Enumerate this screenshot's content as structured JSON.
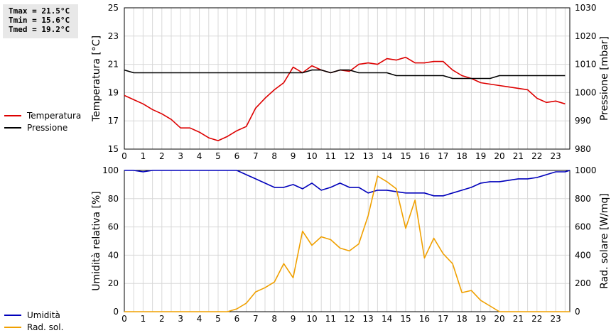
{
  "stats": {
    "tmax": "Tmax = 21.5°C",
    "tmin": "Tmin = 15.6°C",
    "tmed": "Tmed = 19.2°C"
  },
  "legend_top": [
    {
      "label": "Temperatura",
      "color": "#dd0000"
    },
    {
      "label": "Pressione",
      "color": "#000000"
    }
  ],
  "legend_bottom": [
    {
      "label": "Umidità",
      "color": "#0000bb"
    },
    {
      "label": "Rad. sol.",
      "color": "#f0a000"
    }
  ],
  "chart_data": [
    {
      "type": "line",
      "x_ticks": [
        "0",
        "1",
        "2",
        "3",
        "4",
        "5",
        "6",
        "7",
        "8",
        "9",
        "10",
        "11",
        "12",
        "13",
        "14",
        "15",
        "16",
        "17",
        "18",
        "19",
        "20",
        "21",
        "22",
        "23"
      ],
      "xlim": [
        0,
        23.75
      ],
      "ylabel": "Temperatura [°C]",
      "ylim": [
        15,
        25
      ],
      "y_ticks": [
        "15",
        "17",
        "19",
        "21",
        "23",
        "25"
      ],
      "y2label": "Pressione [mbar]",
      "y2lim": [
        980,
        1030
      ],
      "y2_ticks": [
        "980",
        "990",
        "1000",
        "1010",
        "1020",
        "1030"
      ],
      "grid": true,
      "x": [
        0,
        0.5,
        1,
        1.5,
        2,
        2.5,
        3,
        3.5,
        4,
        4.5,
        5,
        5.5,
        6,
        6.5,
        7,
        7.5,
        8,
        8.5,
        9,
        9.5,
        10,
        10.5,
        11,
        11.5,
        12,
        12.5,
        13,
        13.5,
        14,
        14.5,
        15,
        15.5,
        16,
        16.5,
        17,
        17.5,
        18,
        18.5,
        19,
        19.5,
        20,
        20.5,
        21,
        21.5,
        22,
        22.5,
        23,
        23.5
      ],
      "series": [
        {
          "name": "Temperatura",
          "axis": "left",
          "color": "#dd0000",
          "values": [
            18.8,
            18.5,
            18.2,
            17.8,
            17.5,
            17.1,
            16.5,
            16.5,
            16.2,
            15.8,
            15.6,
            15.9,
            16.3,
            16.6,
            17.9,
            18.6,
            19.2,
            19.7,
            20.8,
            20.4,
            20.9,
            20.6,
            20.4,
            20.6,
            20.5,
            21.0,
            21.1,
            21.0,
            21.4,
            21.3,
            21.5,
            21.1,
            21.1,
            21.2,
            21.2,
            20.6,
            20.2,
            20.0,
            19.7,
            19.6,
            19.5,
            19.4,
            19.3,
            19.2,
            18.6,
            18.3,
            18.4,
            18.2
          ]
        },
        {
          "name": "Pressione",
          "axis": "right",
          "color": "#000000",
          "values": [
            1008,
            1007,
            1007,
            1007,
            1007,
            1007,
            1007,
            1007,
            1007,
            1007,
            1007,
            1007,
            1007,
            1007,
            1007,
            1007,
            1007,
            1007,
            1007,
            1007,
            1008,
            1008,
            1007,
            1008,
            1008,
            1007,
            1007,
            1007,
            1007,
            1006,
            1006,
            1006,
            1006,
            1006,
            1006,
            1005,
            1005,
            1005,
            1005,
            1005,
            1006,
            1006,
            1006,
            1006,
            1006,
            1006,
            1006,
            1006
          ]
        }
      ]
    },
    {
      "type": "line",
      "x_ticks": [
        "0",
        "1",
        "2",
        "3",
        "4",
        "5",
        "6",
        "7",
        "8",
        "9",
        "10",
        "11",
        "12",
        "13",
        "14",
        "15",
        "16",
        "17",
        "18",
        "19",
        "20",
        "21",
        "22",
        "23"
      ],
      "xlim": [
        0,
        23.75
      ],
      "ylabel": "Umidità relativa [%]",
      "ylim": [
        0,
        100
      ],
      "y_ticks": [
        "0",
        "20",
        "40",
        "60",
        "80",
        "100"
      ],
      "y2label": "Rad. solare [W/mq]",
      "y2lim": [
        0,
        1000
      ],
      "y2_ticks": [
        "0",
        "200",
        "400",
        "600",
        "800",
        "1000"
      ],
      "grid": true,
      "x": [
        0,
        0.5,
        1,
        1.5,
        2,
        2.5,
        3,
        3.5,
        4,
        4.5,
        5,
        5.5,
        6,
        6.5,
        7,
        7.5,
        8,
        8.5,
        9,
        9.5,
        10,
        10.5,
        11,
        11.5,
        12,
        12.5,
        13,
        13.5,
        14,
        14.5,
        15,
        15.5,
        16,
        16.5,
        17,
        17.5,
        18,
        18.5,
        19,
        19.5,
        20,
        20.5,
        21,
        21.5,
        22,
        22.5,
        23,
        23.5,
        23.75
      ],
      "series": [
        {
          "name": "Umidità",
          "axis": "left",
          "color": "#0000bb",
          "values": [
            100,
            100,
            99,
            100,
            100,
            100,
            100,
            100,
            100,
            100,
            100,
            100,
            100,
            97,
            94,
            91,
            88,
            88,
            90,
            87,
            91,
            86,
            88,
            91,
            88,
            88,
            84,
            86,
            86,
            85,
            84,
            84,
            84,
            82,
            82,
            84,
            86,
            88,
            91,
            92,
            92,
            93,
            94,
            94,
            95,
            97,
            99,
            99,
            100
          ]
        },
        {
          "name": "Rad. sol.",
          "axis": "right",
          "color": "#f0a000",
          "values": [
            0,
            0,
            0,
            0,
            0,
            0,
            0,
            0,
            0,
            0,
            0,
            0,
            20,
            60,
            140,
            170,
            210,
            340,
            240,
            570,
            470,
            530,
            510,
            450,
            430,
            480,
            680,
            960,
            920,
            870,
            590,
            790,
            380,
            520,
            410,
            340,
            135,
            150,
            80,
            40,
            0,
            0,
            0,
            0,
            0,
            0,
            0,
            0,
            0
          ]
        }
      ]
    }
  ]
}
